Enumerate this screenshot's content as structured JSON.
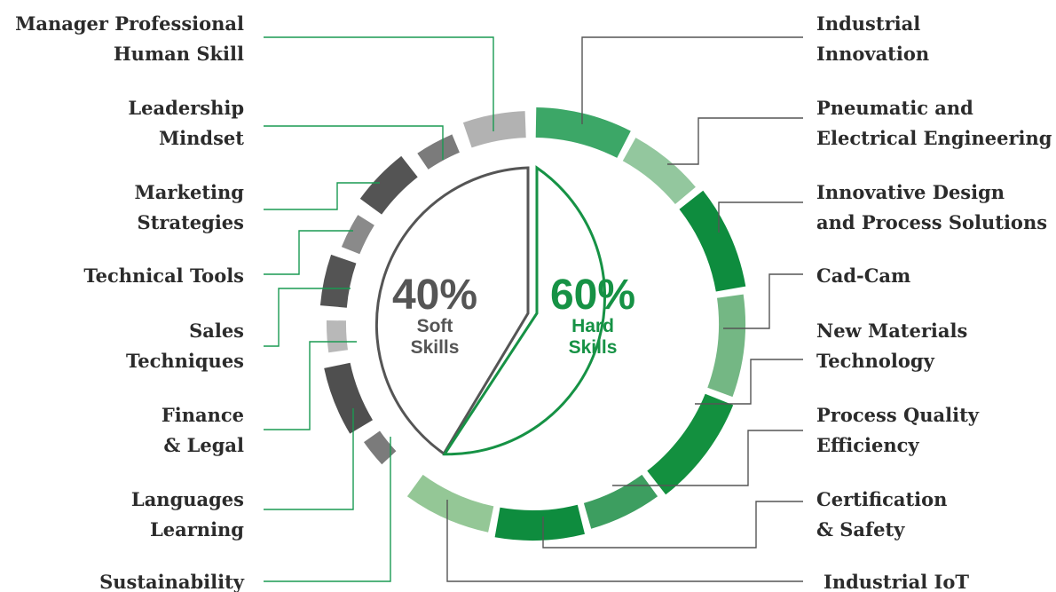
{
  "colors": {
    "hard_accent": "#169245",
    "soft_accent": "#555555",
    "label_text": "#2b2b2b"
  },
  "center": {
    "soft": {
      "percent": "40%",
      "line1": "Soft",
      "line2": "Skills"
    },
    "hard": {
      "percent": "60%",
      "line1": "Hard",
      "line2": "Skills"
    }
  },
  "soft_skills": [
    {
      "lines": [
        "Manager Professional",
        "Human Skill"
      ],
      "color": "#b2b2b2"
    },
    {
      "lines": [
        "Leadership",
        "Mindset"
      ],
      "color": "#7b7b7b"
    },
    {
      "lines": [
        "Marketing",
        "Strategies"
      ],
      "color": "#545454"
    },
    {
      "lines": [
        "Technical Tools"
      ],
      "color": "#8a8a8a"
    },
    {
      "lines": [
        "Sales",
        "Techniques"
      ],
      "color": "#545454"
    },
    {
      "lines": [
        "Finance",
        "& Legal"
      ],
      "color": "#b8b8b8"
    },
    {
      "lines": [
        "Languages",
        "Learning"
      ],
      "color": "#4f4f4f"
    },
    {
      "lines": [
        "Sustainability"
      ],
      "color": "#7b7b7b"
    }
  ],
  "hard_skills": [
    {
      "lines": [
        "Industrial",
        "Innovation"
      ],
      "color": "#3ca767"
    },
    {
      "lines": [
        "Pneumatic and",
        "Electrical Engineering"
      ],
      "color": "#93c79e"
    },
    {
      "lines": [
        "Innovative Design",
        "and Process Solutions"
      ],
      "color": "#0e8c3e"
    },
    {
      "lines": [
        "Cad-Cam"
      ],
      "color": "#74b784"
    },
    {
      "lines": [
        "New Materials",
        "Technology"
      ],
      "color": "#13903f"
    },
    {
      "lines": [
        "Process Quality",
        "Efficiency"
      ],
      "color": "#3d9e60"
    },
    {
      "lines": [
        "Certification",
        "& Safety"
      ],
      "color": "#0e8c3e"
    },
    {
      "lines": [
        "Industrial IoT"
      ],
      "color": "#94c796"
    }
  ]
}
